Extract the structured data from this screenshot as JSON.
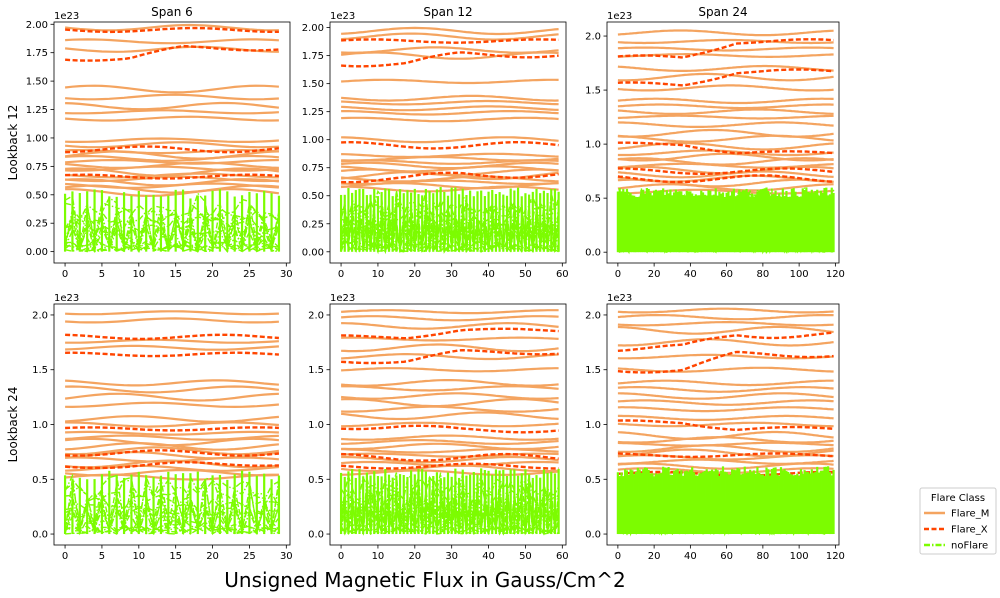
{
  "figure": {
    "xlabel": "Unsigned Magnetic Flux in Gauss/Cm^2"
  },
  "colors": {
    "Flare_M": "#f4a460",
    "Flare_X": "#ff4500",
    "noFlare": "#7cfc00"
  },
  "chart_data": [
    {
      "type": "line",
      "row": 0,
      "col": 0,
      "title": "Span 6",
      "ylabel": "Lookback 12",
      "offset_text": "1e23",
      "xlim": [
        -1.5,
        30.5
      ],
      "ylim": [
        -0.1,
        2.02
      ],
      "xticks": [
        0,
        5,
        10,
        15,
        20,
        25,
        30
      ],
      "yticks": [
        0,
        0.25,
        0.5,
        0.75,
        1.0,
        1.25,
        1.5,
        1.75,
        2.0
      ],
      "ytick_labels": [
        "0.00",
        "0.25",
        "0.50",
        "0.75",
        "1.00",
        "1.25",
        "1.50",
        "1.75",
        "2.00"
      ],
      "n": 30,
      "series": [
        {
          "name": "Flare_M",
          "levels": [
            1.97,
            1.85,
            1.78,
            1.43,
            1.36,
            1.28,
            1.23,
            1.17,
            0.98,
            0.94,
            0.88,
            0.85,
            0.82,
            0.79,
            0.76,
            0.73,
            0.7,
            0.67,
            0.64,
            0.61,
            0.58,
            0.55,
            0.52
          ]
        },
        {
          "name": "Flare_X",
          "levels": [
            1.95,
            1.7,
            0.9,
            0.66
          ],
          "bump": [
            0,
            0.09,
            0,
            0
          ]
        },
        {
          "name": "noFlare",
          "band": [
            0,
            0.55
          ]
        }
      ]
    },
    {
      "type": "line",
      "row": 0,
      "col": 1,
      "title": "Span 12",
      "offset_text": "1e23",
      "xlim": [
        -3,
        61
      ],
      "ylim": [
        -0.1,
        2.05
      ],
      "xticks": [
        0,
        10,
        20,
        30,
        40,
        50,
        60
      ],
      "yticks": [
        0,
        0.25,
        0.5,
        0.75,
        1.0,
        1.25,
        1.5,
        1.75,
        2.0
      ],
      "ytick_labels": [
        "0.00",
        "0.25",
        "0.50",
        "0.75",
        "1.00",
        "1.25",
        "1.50",
        "1.75",
        "2.00"
      ],
      "n": 60,
      "series": [
        {
          "name": "Flare_M",
          "levels": [
            1.97,
            1.92,
            1.8,
            1.75,
            1.52,
            1.37,
            1.33,
            1.28,
            1.24,
            1.18,
            1.0,
            0.86,
            0.83,
            0.8,
            0.77,
            0.74,
            0.71,
            0.68,
            0.65,
            0.62,
            0.59,
            0.56
          ]
        },
        {
          "name": "Flare_X",
          "levels": [
            1.88,
            1.68,
            0.95,
            0.65
          ],
          "bump": [
            0,
            0.08,
            0,
            0.04
          ]
        },
        {
          "name": "noFlare",
          "band": [
            0,
            0.58
          ]
        }
      ]
    },
    {
      "type": "line",
      "row": 0,
      "col": 2,
      "title": "Span 24",
      "offset_text": "1e23",
      "xlim": [
        -6,
        122
      ],
      "ylim": [
        -0.1,
        2.13
      ],
      "xticks": [
        0,
        20,
        40,
        60,
        80,
        100,
        120
      ],
      "yticks": [
        0,
        0.5,
        1.0,
        1.5,
        2.0
      ],
      "ytick_labels": [
        "0.0",
        "0.5",
        "1.0",
        "1.5",
        "2.0"
      ],
      "n": 120,
      "series": [
        {
          "name": "Flare_M",
          "levels": [
            2.03,
            1.95,
            1.88,
            1.82,
            1.7,
            1.62,
            1.52,
            1.4,
            1.35,
            1.3,
            1.25,
            1.18,
            1.1,
            1.05,
            0.98,
            0.92,
            0.88,
            0.84,
            0.8,
            0.76,
            0.72,
            0.68,
            0.64,
            0.6,
            0.56
          ]
        },
        {
          "name": "Flare_X",
          "levels": [
            1.8,
            1.55,
            1.0,
            0.75,
            0.68
          ],
          "bump": [
            0.15,
            0.12,
            -0.08,
            0,
            0
          ]
        },
        {
          "name": "noFlare",
          "band": [
            0,
            0.6
          ]
        }
      ]
    },
    {
      "type": "line",
      "row": 1,
      "col": 0,
      "ylabel": "Lookback 24",
      "offset_text": "1e23",
      "xlim": [
        -1.5,
        30.5
      ],
      "ylim": [
        -0.1,
        2.1
      ],
      "xticks": [
        0,
        5,
        10,
        15,
        20,
        25,
        30
      ],
      "yticks": [
        0,
        0.5,
        1.0,
        1.5,
        2.0
      ],
      "ytick_labels": [
        "0.0",
        "0.5",
        "1.0",
        "1.5",
        "2.0"
      ],
      "n": 30,
      "series": [
        {
          "name": "Flare_M",
          "levels": [
            2.02,
            1.95,
            1.76,
            1.7,
            1.38,
            1.32,
            1.25,
            1.18,
            1.05,
            1.0,
            0.92,
            0.88,
            0.84,
            0.8,
            0.76,
            0.72,
            0.68,
            0.64,
            0.6,
            0.56,
            0.52
          ]
        },
        {
          "name": "Flare_X",
          "levels": [
            1.8,
            1.64,
            0.96,
            0.74,
            0.62
          ],
          "bump": [
            0,
            0,
            0,
            0,
            0.02
          ]
        },
        {
          "name": "noFlare",
          "band": [
            0,
            0.58
          ]
        }
      ]
    },
    {
      "type": "line",
      "row": 1,
      "col": 1,
      "offset_text": "1e23",
      "xlim": [
        -3,
        61
      ],
      "ylim": [
        -0.1,
        2.1
      ],
      "xticks": [
        0,
        10,
        20,
        30,
        40,
        50,
        60
      ],
      "yticks": [
        0,
        0.5,
        1.0,
        1.5,
        2.0
      ],
      "ytick_labels": [
        "0.0",
        "0.5",
        "1.0",
        "1.5",
        "2.0"
      ],
      "n": 60,
      "series": [
        {
          "name": "Flare_M",
          "levels": [
            2.03,
            1.97,
            1.9,
            1.78,
            1.7,
            1.62,
            1.5,
            1.38,
            1.33,
            1.26,
            1.2,
            1.14,
            1.08,
            1.0,
            0.88,
            0.84,
            0.8,
            0.76,
            0.72,
            0.68,
            0.64,
            0.6,
            0.56
          ]
        },
        {
          "name": "Flare_X",
          "levels": [
            1.8,
            1.58,
            0.98,
            0.7,
            0.62
          ],
          "bump": [
            0.06,
            0.08,
            -0.03,
            0,
            0
          ]
        },
        {
          "name": "noFlare",
          "band": [
            0,
            0.6
          ]
        }
      ]
    },
    {
      "type": "line",
      "row": 1,
      "col": 2,
      "offset_text": "1e23",
      "xlim": [
        -6,
        122
      ],
      "ylim": [
        -0.1,
        2.1
      ],
      "xticks": [
        0,
        20,
        40,
        60,
        80,
        100,
        120
      ],
      "yticks": [
        0,
        0.5,
        1.0,
        1.5,
        2.0
      ],
      "ytick_labels": [
        "0.0",
        "0.5",
        "1.0",
        "1.5",
        "2.0"
      ],
      "n": 120,
      "series": [
        {
          "name": "Flare_M",
          "levels": [
            2.04,
            1.98,
            1.92,
            1.86,
            1.75,
            1.62,
            1.5,
            1.38,
            1.32,
            1.26,
            1.2,
            1.14,
            1.06,
            1.0,
            0.9,
            0.86,
            0.82,
            0.78,
            0.74,
            0.7,
            0.66,
            0.62,
            0.58,
            0.54
          ]
        },
        {
          "name": "Flare_X",
          "levels": [
            1.7,
            1.5,
            1.02,
            0.72,
            0.55
          ],
          "bump": [
            0.12,
            0.14,
            -0.06,
            0,
            0
          ]
        },
        {
          "name": "noFlare",
          "band": [
            0,
            0.62
          ]
        }
      ]
    }
  ],
  "legend": {
    "title": "Flare Class",
    "location": "lower-right",
    "entries": [
      {
        "label": "Flare_M",
        "style": "solid"
      },
      {
        "label": "Flare_X",
        "style": "dashed"
      },
      {
        "label": "noFlare",
        "style": "dashdot"
      }
    ]
  }
}
